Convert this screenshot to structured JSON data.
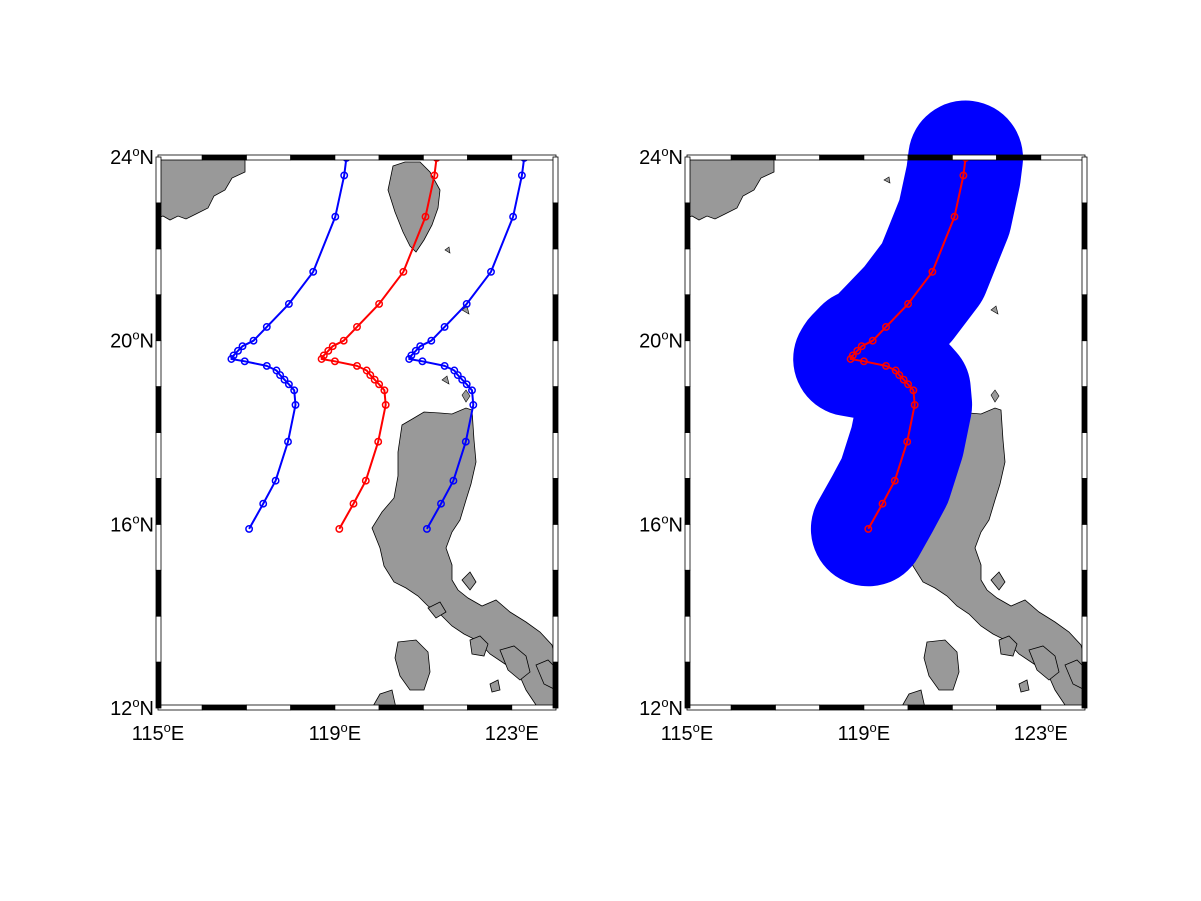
{
  "figure": {
    "panels": [
      {
        "id": "left",
        "xlim": [
          115,
          124
        ],
        "ylim": [
          12,
          24
        ],
        "x_ticks": [
          {
            "value": 115,
            "label": "115",
            "hemi": "E"
          },
          {
            "value": 119,
            "label": "119",
            "hemi": "E"
          },
          {
            "value": 123,
            "label": "123",
            "hemi": "E"
          }
        ],
        "y_ticks": [
          {
            "value": 24,
            "label": "24",
            "hemi": "N"
          },
          {
            "value": 20,
            "label": "20",
            "hemi": "N"
          },
          {
            "value": 16,
            "label": "16",
            "hemi": "N"
          },
          {
            "value": 12,
            "label": "12",
            "hemi": "N"
          }
        ],
        "land_color": "#999999",
        "tracks": [
          {
            "color": "#0000ff",
            "offset_lon": -2.04
          },
          {
            "color": "#ff0000",
            "offset_lon": 0
          },
          {
            "color": "#0000ff",
            "offset_lon": 1.98
          }
        ],
        "buffer": null
      },
      {
        "id": "right",
        "xlim": [
          115,
          124
        ],
        "ylim": [
          12,
          24
        ],
        "x_ticks": [
          {
            "value": 115,
            "label": "115",
            "hemi": "E"
          },
          {
            "value": 119,
            "label": "119",
            "hemi": "E"
          },
          {
            "value": 123,
            "label": "123",
            "hemi": "E"
          }
        ],
        "y_ticks": [
          {
            "value": 24,
            "label": "24",
            "hemi": "N"
          },
          {
            "value": 20,
            "label": "20",
            "hemi": "N"
          },
          {
            "value": 16,
            "label": "16",
            "hemi": "N"
          },
          {
            "value": 12,
            "label": "12",
            "hemi": "N"
          }
        ],
        "land_color": "#999999",
        "tracks": [
          {
            "color": "#ff0000",
            "offset_lon": 0
          }
        ],
        "buffer": {
          "color": "#0000ff",
          "radius_deg": 1.25
        }
      }
    ],
    "track_points": [
      [
        119.1,
        15.9
      ],
      [
        119.42,
        16.45
      ],
      [
        119.7,
        16.95
      ],
      [
        119.98,
        17.8
      ],
      [
        120.15,
        18.6
      ],
      [
        120.12,
        18.92
      ],
      [
        120.0,
        19.05
      ],
      [
        119.9,
        19.15
      ],
      [
        119.8,
        19.25
      ],
      [
        119.72,
        19.35
      ],
      [
        119.5,
        19.45
      ],
      [
        119.0,
        19.55
      ],
      [
        118.7,
        19.6
      ],
      [
        118.75,
        19.68
      ],
      [
        118.85,
        19.78
      ],
      [
        118.95,
        19.88
      ],
      [
        119.2,
        20.0
      ],
      [
        119.5,
        20.3
      ],
      [
        120.0,
        20.8
      ],
      [
        120.55,
        21.5
      ],
      [
        121.05,
        22.7
      ],
      [
        121.25,
        23.6
      ],
      [
        121.3,
        23.98
      ]
    ]
  }
}
